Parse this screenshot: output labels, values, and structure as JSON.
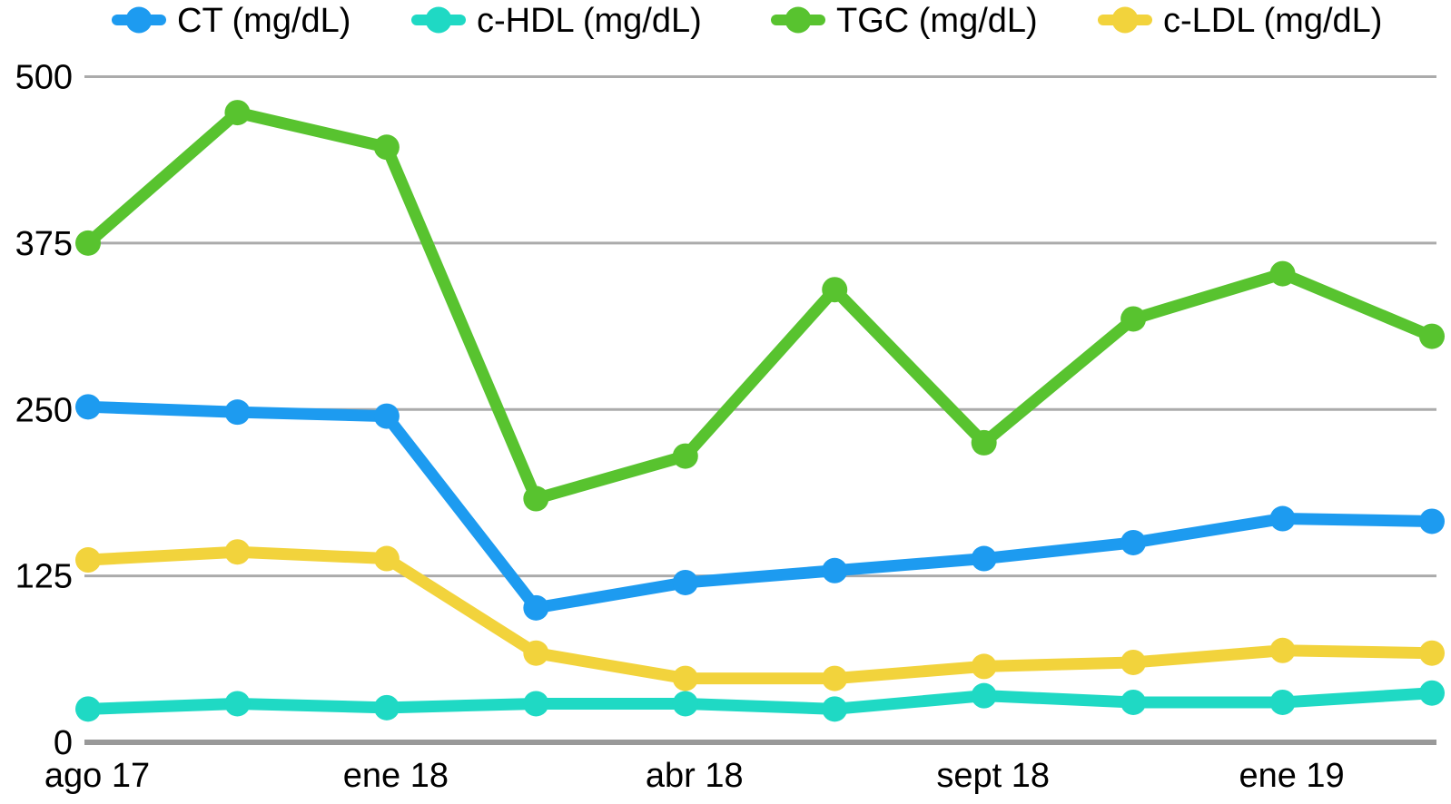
{
  "chart_data": {
    "type": "line",
    "title": "",
    "xlabel": "",
    "ylabel": "",
    "n_points": 10,
    "x_tick_labels": [
      "ago 17",
      "ene 18",
      "abr 18",
      "sept 18",
      "ene 19"
    ],
    "x_tick_point_indices": [
      0,
      2,
      4,
      6,
      8
    ],
    "y_ticks": [
      0,
      125,
      250,
      375,
      500
    ],
    "ylim": [
      0,
      500
    ],
    "grid": "horizontal-only",
    "legend_position": "top",
    "background_color": "#ffffff",
    "gridline_color": "#ababab",
    "zero_line_color": "#999999",
    "text_color": "#000000",
    "series": [
      {
        "name": "CT (mg/dL)",
        "color": "#1d9bf0",
        "values": [
          252,
          248,
          245,
          101,
          120,
          129,
          138,
          150,
          168,
          166
        ]
      },
      {
        "name": "c-HDL (mg/dL)",
        "color": "#1fd9c4",
        "values": [
          25,
          29,
          26,
          29,
          29,
          25,
          35,
          30,
          30,
          37
        ]
      },
      {
        "name": "TGC (mg/dL)",
        "color": "#58c32f",
        "values": [
          375,
          473,
          447,
          183,
          215,
          340,
          225,
          318,
          352,
          305
        ]
      },
      {
        "name": "c-LDL (mg/dL)",
        "color": "#f2d33c",
        "values": [
          137,
          143,
          138,
          67,
          48,
          48,
          57,
          60,
          69,
          67
        ]
      }
    ]
  }
}
